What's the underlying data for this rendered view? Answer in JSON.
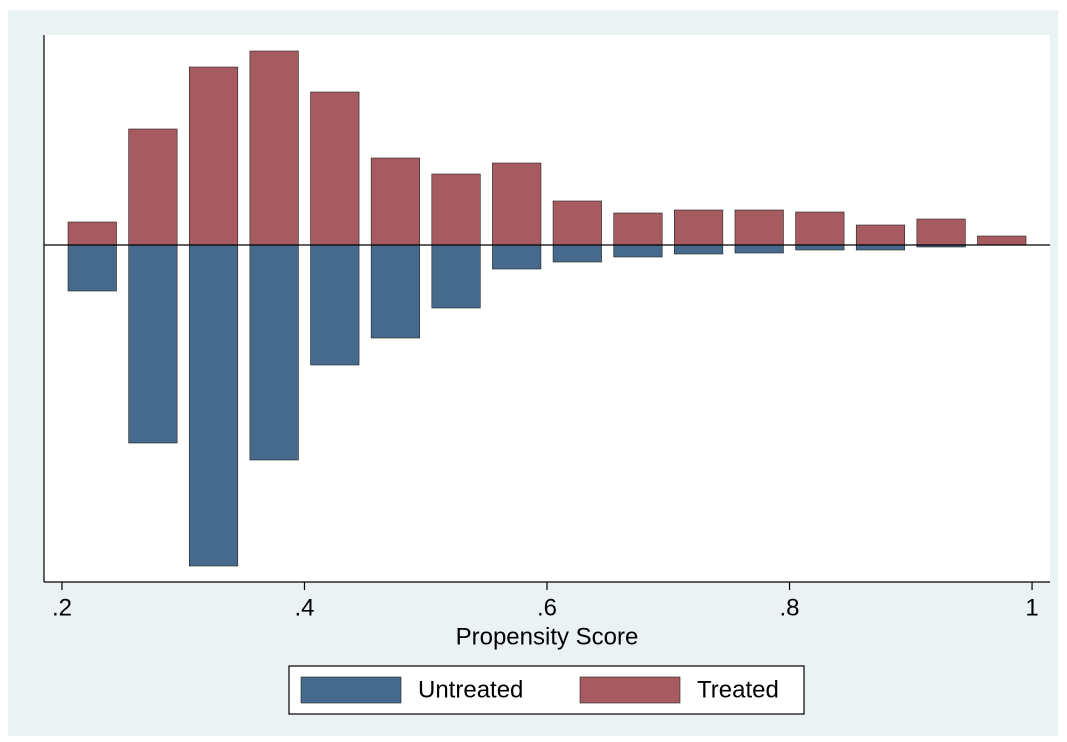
{
  "chart_data": {
    "type": "mirrored_histogram",
    "x_label": "Propensity Score",
    "bins": [
      0.2,
      0.25,
      0.3,
      0.35,
      0.4,
      0.45,
      0.5,
      0.55,
      0.6,
      0.65,
      0.7,
      0.75,
      0.8,
      0.85,
      0.9,
      0.95,
      1.0
    ],
    "series": [
      {
        "name": "Untreated",
        "color": "#466a8c",
        "values": [
          -46,
          -198,
          -321,
          -215,
          -120,
          -93,
          -63,
          -24,
          -17,
          -12,
          -9,
          -8,
          -5,
          -5,
          -2,
          0
        ]
      },
      {
        "name": "Treated",
        "color": "#a55b5f",
        "values": [
          23,
          116,
          178,
          194,
          153,
          87,
          71,
          82,
          44,
          32,
          35,
          35,
          33,
          20,
          26,
          9
        ]
      }
    ],
    "xlim": [
      0.1852,
      1.0148
    ],
    "xticks": [
      {
        "value": 0.2,
        "label": ".2"
      },
      {
        "value": 0.4,
        "label": ".4"
      },
      {
        "value": 0.6,
        "label": ".6"
      },
      {
        "value": 0.8,
        "label": ".8"
      },
      1
    ],
    "ylim": [
      -337,
      210
    ],
    "legend": "bottom"
  }
}
